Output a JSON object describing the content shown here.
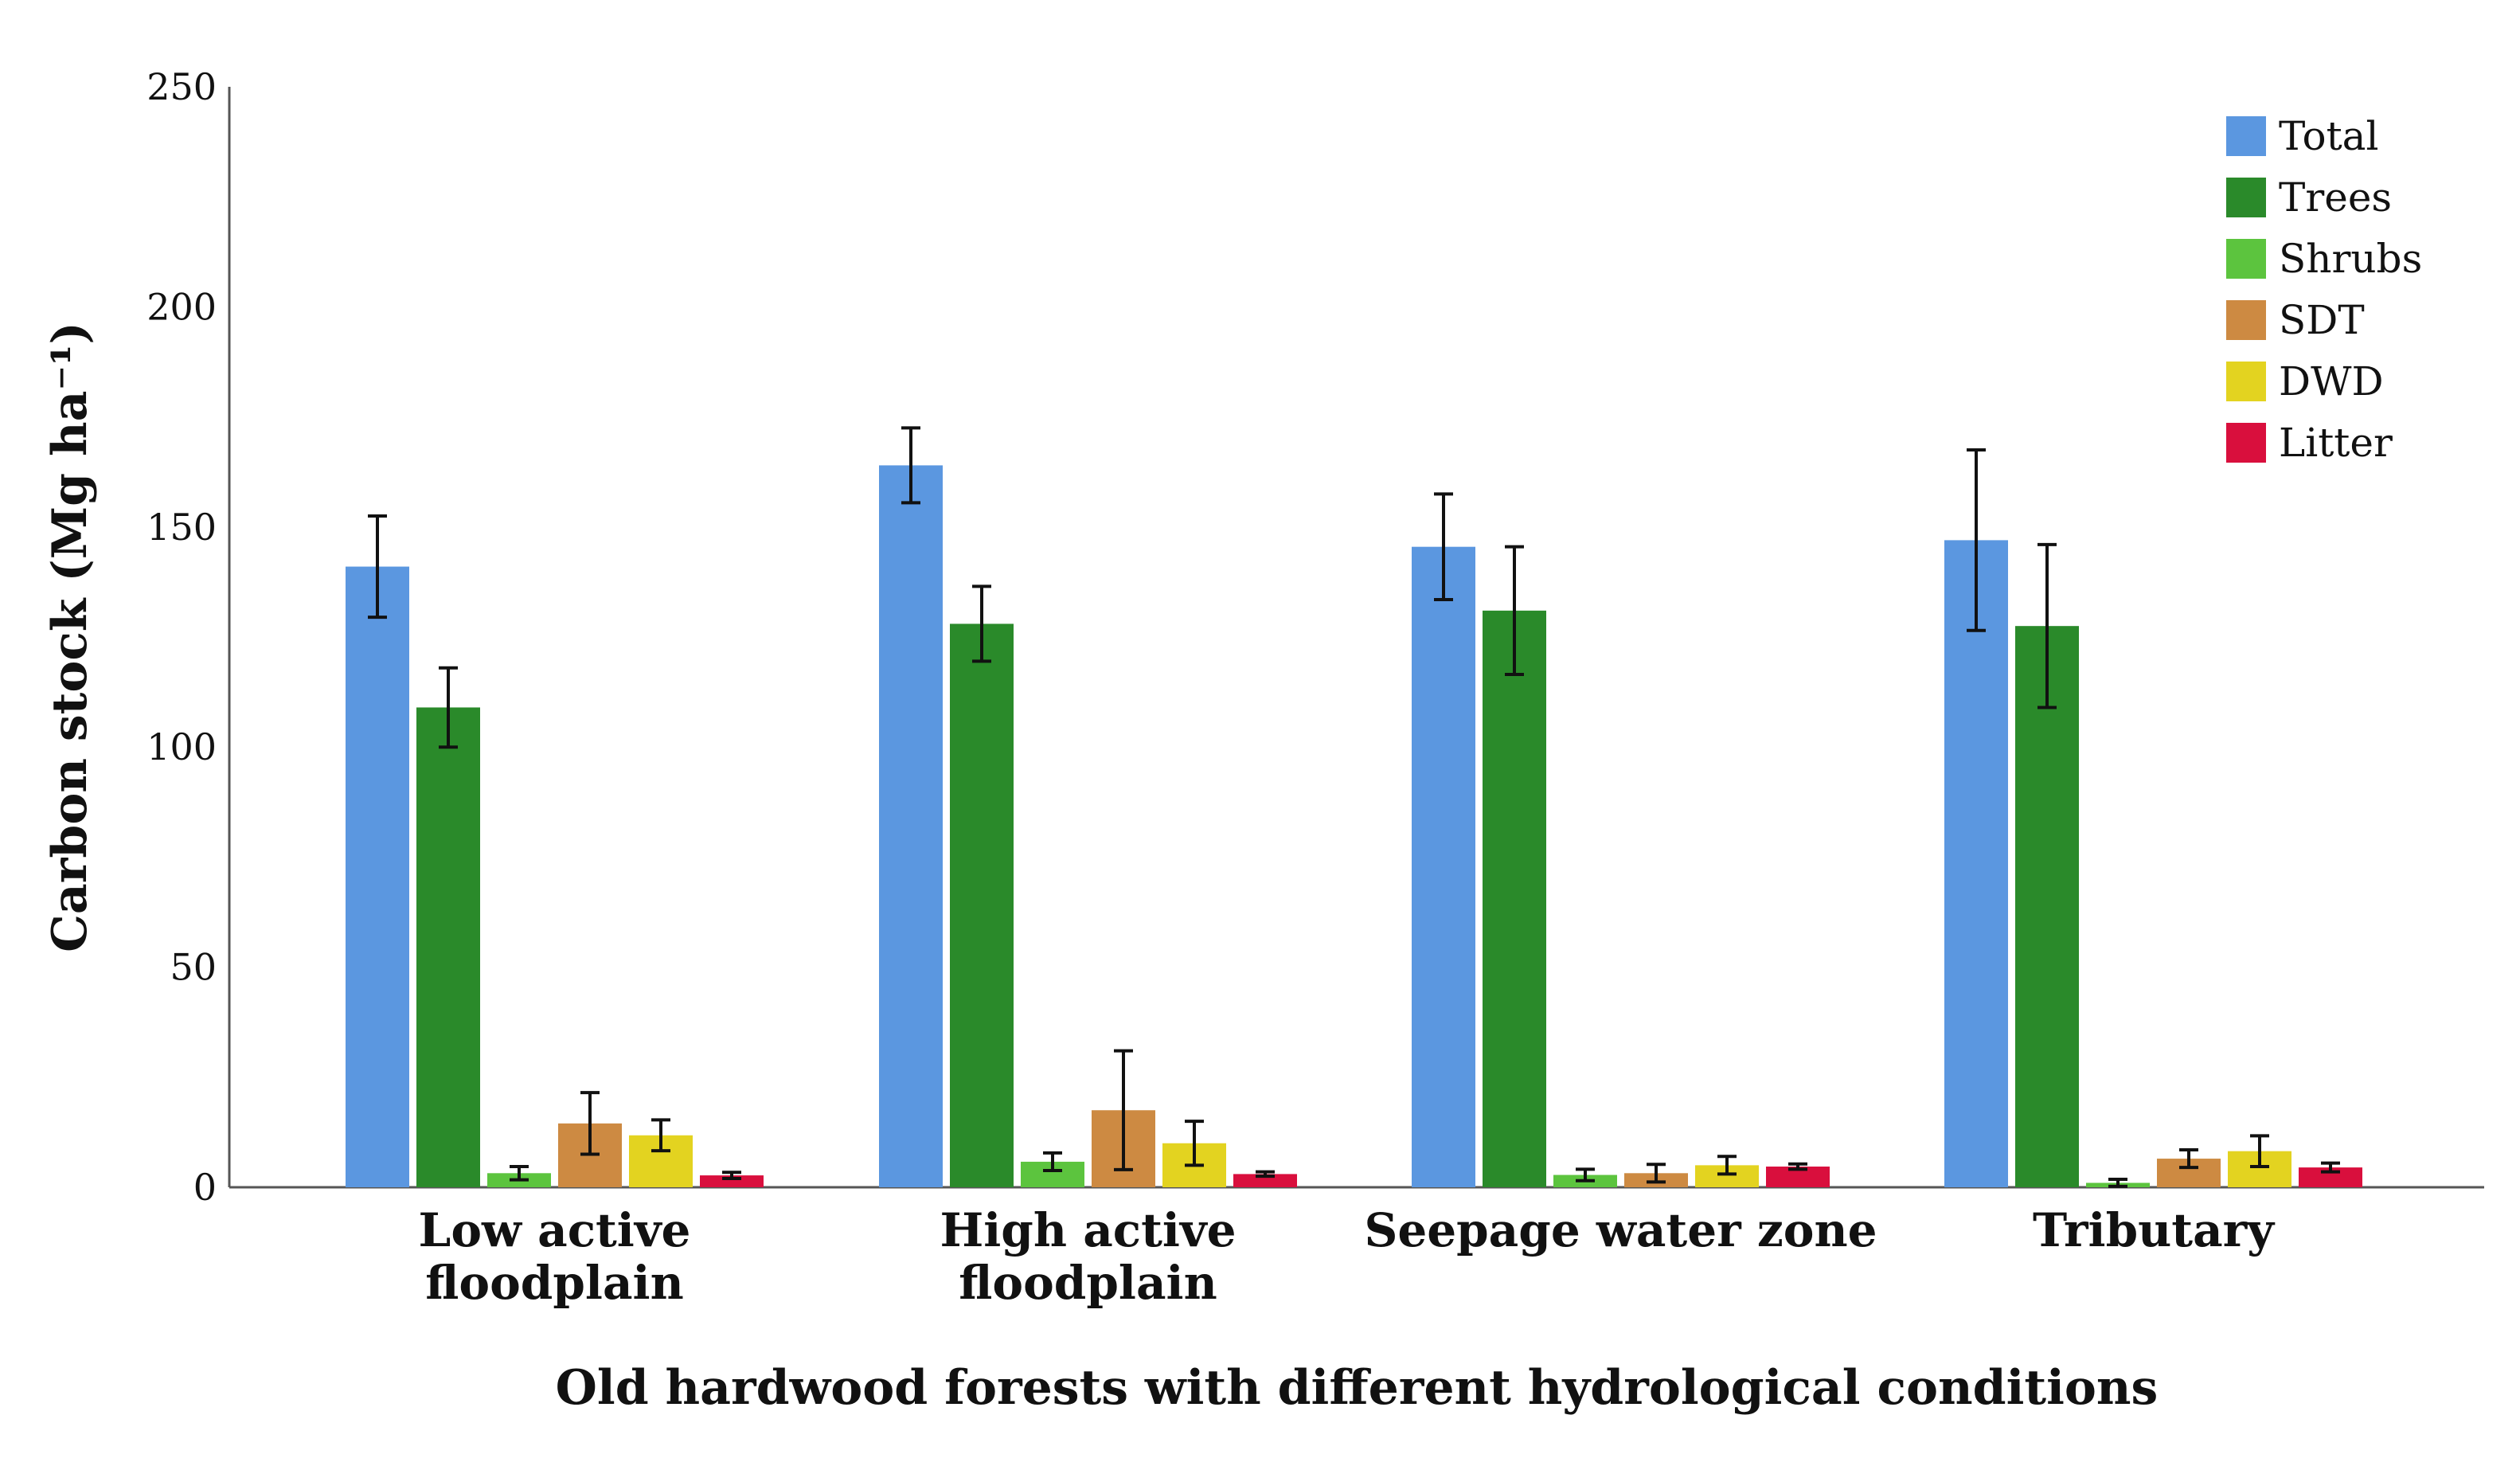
{
  "chart_data": {
    "type": "bar",
    "title": "",
    "xlabel": "Old hardwood forests with different hydrological conditions",
    "ylabel": "Carbon stock (Mg ha⁻¹)",
    "ylim": [
      0,
      250
    ],
    "yticks": [
      "0",
      "50",
      "100",
      "150",
      "200",
      "250"
    ],
    "grid": false,
    "legend_position": "top-right",
    "categories": [
      [
        "Low active",
        "floodplain"
      ],
      [
        "High active",
        "floodplain"
      ],
      [
        "Seepage water zone"
      ],
      [
        "Tributary"
      ]
    ],
    "series": [
      {
        "name": "Total",
        "color": "#5b97e0",
        "values": [
          141,
          164,
          145.5,
          147
        ],
        "errors": [
          11.5,
          8.5,
          12,
          20.5
        ]
      },
      {
        "name": "Trees",
        "color": "#2a8a2a",
        "values": [
          109,
          128,
          131,
          127.5
        ],
        "errors": [
          9,
          8.5,
          14.5,
          18.5
        ]
      },
      {
        "name": "Shrubs",
        "color": "#5cc43e",
        "values": [
          3.2,
          5.8,
          2.8,
          1
        ],
        "errors": [
          1.5,
          2,
          1.3,
          0.8
        ]
      },
      {
        "name": "SDT",
        "color": "#cd8a42",
        "values": [
          14.5,
          17.5,
          3.2,
          6.5
        ],
        "errors": [
          7,
          13.5,
          2,
          2
        ]
      },
      {
        "name": "DWD",
        "color": "#e3d320",
        "values": [
          11.8,
          10,
          5,
          8.2
        ],
        "errors": [
          3.5,
          5,
          2,
          3.5
        ]
      },
      {
        "name": "Litter",
        "color": "#d90f3d",
        "values": [
          2.7,
          3,
          4.7,
          4.5
        ],
        "errors": [
          0.7,
          0.5,
          0.6,
          1
        ]
      }
    ]
  }
}
